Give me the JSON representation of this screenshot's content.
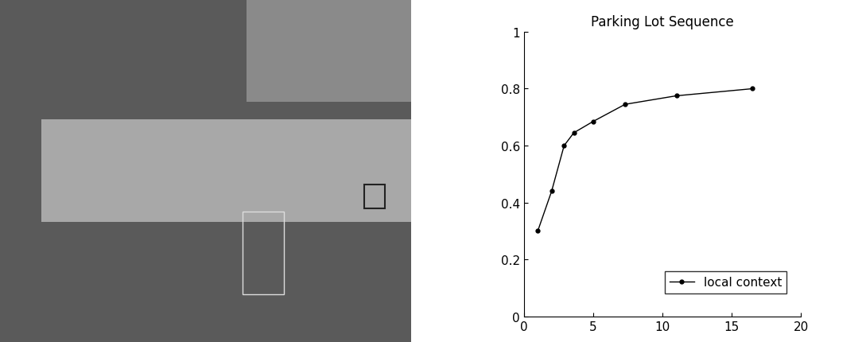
{
  "chart_data": {
    "type": "line",
    "title": "Parking Lot Sequence",
    "x": [
      1,
      2,
      2.9,
      3.6,
      5,
      7.3,
      11,
      16.5
    ],
    "series": [
      {
        "name": "local context",
        "color": "#000000",
        "marker": "dot",
        "line_style": "solid",
        "values": [
          0.3,
          0.44,
          0.6,
          0.645,
          0.685,
          0.745,
          0.775,
          0.8
        ]
      }
    ],
    "xlim": [
      0,
      20
    ],
    "xticks": [
      0,
      5,
      10,
      15,
      20
    ],
    "ylim": [
      0,
      1
    ],
    "yticks": [
      0,
      0.2,
      0.4,
      0.6,
      0.8,
      1
    ],
    "legend": "lower right",
    "grid": false
  }
}
